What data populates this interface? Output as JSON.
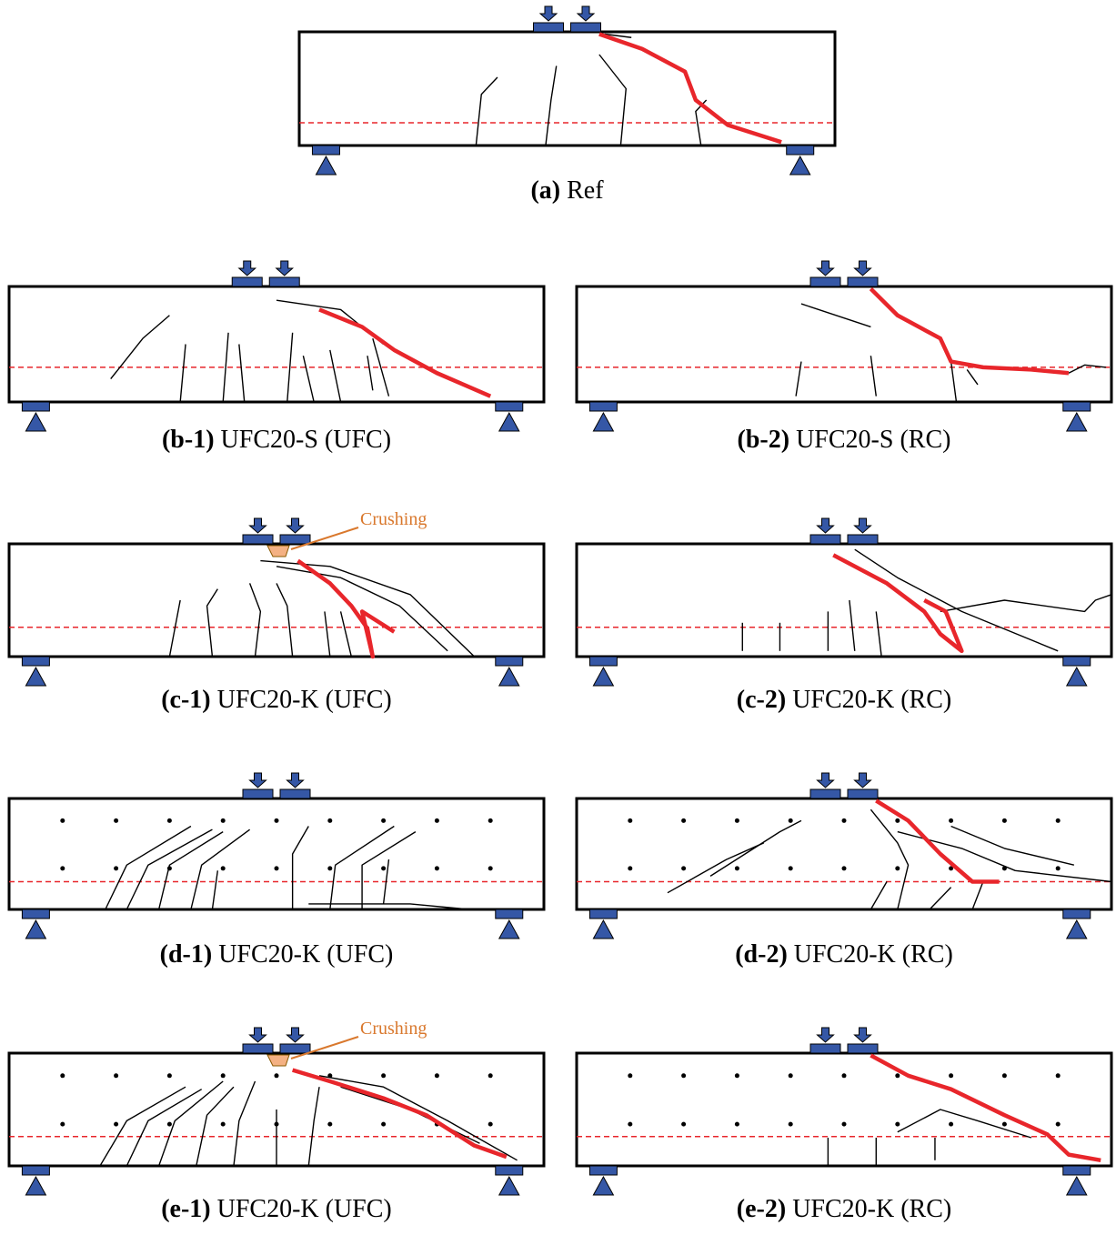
{
  "panels": [
    {
      "id": "(a)",
      "caption": "Ref"
    },
    {
      "id": "(b-1)",
      "caption": "UFC20-S (UFC)"
    },
    {
      "id": "(b-2)",
      "caption": "UFC20-S (RC)"
    },
    {
      "id": "(c-1)",
      "caption": "UFC20-K (UFC)",
      "annotation": "Crushing"
    },
    {
      "id": "(c-2)",
      "caption": "UFC20-K (RC)"
    },
    {
      "id": "(d-1)",
      "caption": "UFC20-K (UFC)"
    },
    {
      "id": "(d-2)",
      "caption": "UFC20-K (RC)"
    },
    {
      "id": "(e-1)",
      "caption": "UFC20-K (UFC)",
      "annotation": "Crushing"
    },
    {
      "id": "(e-2)",
      "caption": "UFC20-K (RC)"
    }
  ]
}
